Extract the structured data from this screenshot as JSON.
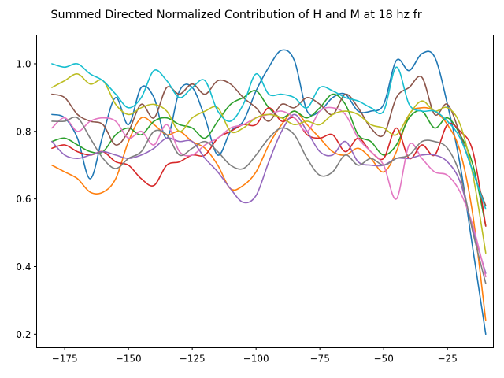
{
  "chart_data": {
    "type": "line",
    "title": "Summed Directed Normalized Contribution of H and M at 18 hz fr",
    "xlabel": "",
    "ylabel": "",
    "xlim": [
      -186,
      -7
    ],
    "ylim": [
      0.16,
      1.085
    ],
    "xticks": [
      -175,
      -150,
      -125,
      -100,
      -75,
      -50,
      -25
    ],
    "xtick_labels": [
      "−175",
      "−150",
      "−125",
      "−100",
      "−75",
      "−50",
      "−25"
    ],
    "yticks": [
      0.2,
      0.4,
      0.6,
      0.8,
      1.0
    ],
    "ytick_labels": [
      "0.2",
      "0.4",
      "0.6",
      "0.8",
      "1.0"
    ],
    "grid": false,
    "legend": "none",
    "x": [
      -180,
      -175,
      -170,
      -165,
      -160,
      -155,
      -150,
      -145,
      -140,
      -135,
      -130,
      -125,
      -120,
      -115,
      -110,
      -105,
      -100,
      -95,
      -90,
      -85,
      -80,
      -75,
      -70,
      -65,
      -60,
      -55,
      -50,
      -45,
      -40,
      -35,
      -30,
      -25,
      -20,
      -15,
      -10
    ],
    "series": [
      {
        "color": "#1f77b4",
        "values": [
          0.85,
          0.84,
          0.78,
          0.66,
          0.79,
          0.9,
          0.82,
          0.93,
          0.9,
          0.78,
          0.92,
          0.93,
          0.84,
          0.73,
          0.8,
          0.83,
          0.92,
          0.99,
          1.04,
          1.01,
          0.86,
          0.86,
          0.9,
          0.91,
          0.86,
          0.86,
          0.88,
          1.01,
          0.98,
          1.03,
          1.02,
          0.88,
          0.7,
          0.45,
          0.2
        ]
      },
      {
        "color": "#ff7f0e",
        "values": [
          0.7,
          0.68,
          0.66,
          0.62,
          0.62,
          0.66,
          0.77,
          0.84,
          0.82,
          0.79,
          0.8,
          0.77,
          0.75,
          0.7,
          0.63,
          0.64,
          0.68,
          0.76,
          0.82,
          0.86,
          0.82,
          0.78,
          0.74,
          0.73,
          0.75,
          0.72,
          0.68,
          0.74,
          0.85,
          0.87,
          0.86,
          0.82,
          0.74,
          0.55,
          0.24
        ]
      },
      {
        "color": "#2ca02c",
        "values": [
          0.77,
          0.78,
          0.76,
          0.74,
          0.74,
          0.79,
          0.81,
          0.79,
          0.83,
          0.84,
          0.82,
          0.81,
          0.78,
          0.83,
          0.88,
          0.9,
          0.92,
          0.87,
          0.84,
          0.86,
          0.84,
          0.87,
          0.91,
          0.88,
          0.79,
          0.77,
          0.73,
          0.76,
          0.84,
          0.86,
          0.81,
          0.84,
          0.79,
          0.7,
          0.52
        ]
      },
      {
        "color": "#d62728",
        "values": [
          0.75,
          0.76,
          0.74,
          0.73,
          0.74,
          0.71,
          0.7,
          0.66,
          0.64,
          0.7,
          0.71,
          0.73,
          0.73,
          0.78,
          0.8,
          0.82,
          0.82,
          0.87,
          0.83,
          0.84,
          0.79,
          0.78,
          0.79,
          0.74,
          0.78,
          0.74,
          0.72,
          0.81,
          0.72,
          0.76,
          0.73,
          0.82,
          0.8,
          0.74,
          0.52
        ]
      },
      {
        "color": "#9467bd",
        "values": [
          0.77,
          0.73,
          0.72,
          0.73,
          0.74,
          0.73,
          0.72,
          0.73,
          0.75,
          0.78,
          0.77,
          0.77,
          0.72,
          0.68,
          0.63,
          0.59,
          0.61,
          0.71,
          0.8,
          0.85,
          0.8,
          0.74,
          0.73,
          0.77,
          0.71,
          0.7,
          0.7,
          0.72,
          0.72,
          0.73,
          0.73,
          0.71,
          0.65,
          0.51,
          0.38
        ]
      },
      {
        "color": "#8c564b",
        "values": [
          0.91,
          0.9,
          0.85,
          0.83,
          0.82,
          0.76,
          0.8,
          0.88,
          0.84,
          0.93,
          0.91,
          0.94,
          0.91,
          0.95,
          0.94,
          0.9,
          0.87,
          0.83,
          0.88,
          0.87,
          0.9,
          0.88,
          0.85,
          0.91,
          0.87,
          0.81,
          0.79,
          0.9,
          0.93,
          0.96,
          0.85,
          0.88,
          0.79,
          0.68,
          0.58
        ]
      },
      {
        "color": "#e377c2",
        "values": [
          0.81,
          0.84,
          0.8,
          0.83,
          0.84,
          0.83,
          0.78,
          0.8,
          0.76,
          0.82,
          0.74,
          0.73,
          0.76,
          0.78,
          0.81,
          0.82,
          0.84,
          0.85,
          0.86,
          0.84,
          0.8,
          0.86,
          0.87,
          0.85,
          0.78,
          0.74,
          0.7,
          0.6,
          0.76,
          0.72,
          0.68,
          0.67,
          0.62,
          0.52,
          0.37
        ]
      },
      {
        "color": "#7f7f7f",
        "values": [
          0.83,
          0.83,
          0.84,
          0.78,
          0.72,
          0.69,
          0.72,
          0.74,
          0.8,
          0.79,
          0.73,
          0.75,
          0.77,
          0.74,
          0.7,
          0.69,
          0.73,
          0.78,
          0.81,
          0.79,
          0.72,
          0.67,
          0.68,
          0.73,
          0.7,
          0.72,
          0.7,
          0.72,
          0.73,
          0.77,
          0.77,
          0.75,
          0.67,
          0.5,
          0.35
        ]
      },
      {
        "color": "#bcbd22",
        "values": [
          0.93,
          0.95,
          0.97,
          0.94,
          0.95,
          0.88,
          0.85,
          0.87,
          0.88,
          0.86,
          0.8,
          0.84,
          0.86,
          0.87,
          0.8,
          0.81,
          0.84,
          0.85,
          0.84,
          0.82,
          0.83,
          0.82,
          0.85,
          0.86,
          0.85,
          0.82,
          0.81,
          0.79,
          0.85,
          0.89,
          0.86,
          0.87,
          0.82,
          0.67,
          0.44
        ]
      },
      {
        "color": "#17becf",
        "values": [
          1.0,
          0.99,
          1.0,
          0.97,
          0.95,
          0.91,
          0.87,
          0.9,
          0.98,
          0.95,
          0.9,
          0.93,
          0.95,
          0.86,
          0.83,
          0.88,
          0.97,
          0.91,
          0.91,
          0.9,
          0.87,
          0.93,
          0.92,
          0.9,
          0.89,
          0.87,
          0.86,
          0.99,
          0.88,
          0.86,
          0.86,
          0.83,
          0.78,
          0.68,
          0.57
        ]
      }
    ]
  }
}
